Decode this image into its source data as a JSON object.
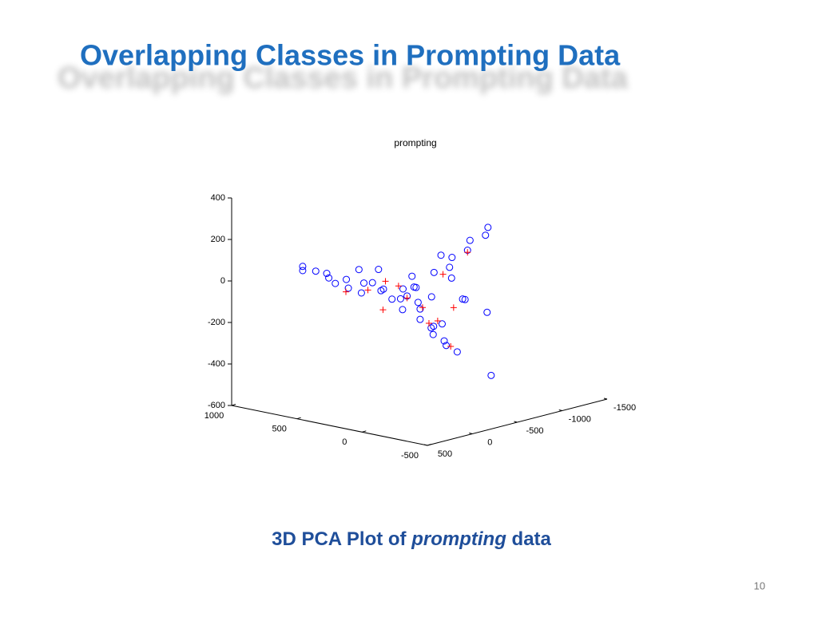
{
  "slide": {
    "title": "Overlapping Classes in Prompting Data",
    "caption": {
      "before": "3D PCA Plot of",
      "emphasis": "prompting",
      "after": "data"
    },
    "page_number": "10"
  },
  "chart_data": {
    "type": "scatter3d",
    "title": "prompting",
    "xlim": [
      -500,
      1000
    ],
    "xticks": [
      -500,
      0,
      500,
      1000
    ],
    "ylim": [
      -1500,
      500
    ],
    "yticks": [
      -1500,
      -1000,
      -500,
      0,
      500
    ],
    "zlim": [
      -600,
      400
    ],
    "zticks": [
      -600,
      -400,
      -200,
      0,
      200,
      400
    ],
    "series": [
      {
        "color": "#0000ff",
        "marker": "circle",
        "x": [
          800,
          800,
          700,
          650,
          600,
          550,
          500,
          450,
          400,
          350,
          300,
          250,
          200,
          150,
          100,
          50,
          0,
          0,
          -50,
          50,
          -100,
          0,
          100,
          -50,
          0,
          -50,
          0,
          -50,
          0,
          -50,
          0,
          -100,
          50,
          -100,
          -150,
          -200,
          -250,
          -300,
          -350,
          -200,
          -100,
          -200,
          -300,
          -150,
          -100,
          150,
          300
        ],
        "y": [
          0,
          0,
          0,
          -50,
          0,
          0,
          -50,
          0,
          -100,
          0,
          -50,
          -100,
          0,
          -50,
          -100,
          0,
          0,
          -100,
          -50,
          -150,
          0,
          50,
          -200,
          -200,
          -300,
          -400,
          -500,
          -600,
          -700,
          -800,
          -900,
          -350,
          -450,
          0,
          -50,
          0,
          -50,
          0,
          -50,
          -100,
          -150,
          -600,
          -500,
          -400,
          -500,
          100,
          100
        ],
        "z": [
          40,
          20,
          30,
          20,
          10,
          -10,
          10,
          -20,
          0,
          -30,
          20,
          -10,
          0,
          -40,
          10,
          -20,
          0,
          30,
          -30,
          20,
          -50,
          -60,
          60,
          -20,
          80,
          100,
          130,
          160,
          190,
          210,
          230,
          60,
          140,
          -100,
          -140,
          -160,
          -190,
          -200,
          -230,
          -120,
          -150,
          -120,
          -400,
          -40,
          -60,
          120,
          100
        ]
      },
      {
        "color": "#ff0000",
        "marker": "plus",
        "x": [
          0,
          100,
          200,
          -50,
          -200,
          -300,
          -50,
          0,
          300,
          150,
          -150,
          400,
          -30
        ],
        "y": [
          0,
          -50,
          -50,
          -100,
          -50,
          -50,
          -600,
          -400,
          0,
          50,
          -300,
          100,
          -200
        ],
        "z": [
          -10,
          30,
          40,
          -60,
          -100,
          -210,
          150,
          60,
          -10,
          -80,
          -70,
          -20,
          -150
        ]
      }
    ]
  }
}
